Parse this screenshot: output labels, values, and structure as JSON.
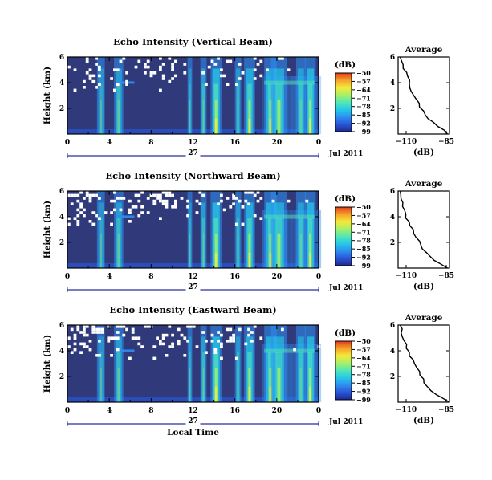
{
  "chart_data": [
    {
      "type": "heatmap",
      "title": "Echo Intensity (Vertical Beam)",
      "ylabel": "Height (km)",
      "ylim": [
        0,
        6
      ],
      "yticks": [
        "6",
        "4",
        "2"
      ],
      "xlim": [
        0,
        24
      ],
      "xticks": [
        "0",
        "4",
        "8",
        "12",
        "16",
        "20",
        "0"
      ],
      "day_label": "27",
      "date_label": "Jul 2011",
      "colorbar": {
        "label": "(dB)",
        "ticks": [
          "-50",
          "-57",
          "-64",
          "-71",
          "-78",
          "-85",
          "-92",
          "-99"
        ],
        "range": [
          -99,
          -50
        ]
      },
      "profile": {
        "title": "Average",
        "xlabel": "(dB)",
        "xlim": [
          -110,
          -85
        ],
        "xticks": [
          "-110",
          "-85"
        ],
        "ylim": [
          0,
          6
        ],
        "yticks": [
          "6",
          "4",
          "2"
        ],
        "height": [
          0.0,
          0.3,
          0.6,
          0.9,
          1.2,
          1.5,
          1.8,
          2.1,
          2.4,
          2.7,
          3.0,
          3.3,
          3.6,
          3.9,
          4.2,
          4.5,
          4.8,
          5.1,
          5.4,
          5.7,
          6.0
        ],
        "db": [
          -86,
          -88,
          -91,
          -93,
          -95,
          -97,
          -98,
          -99,
          -100,
          -101,
          -102,
          -103,
          -104,
          -104.5,
          -105,
          -105.5,
          -106,
          -107,
          -107.5,
          -108,
          -109
        ]
      }
    },
    {
      "type": "heatmap",
      "title": "Echo Intensity (Northward Beam)",
      "ylabel": "Height (km)",
      "ylim": [
        0,
        6
      ],
      "yticks": [
        "6",
        "4",
        "2"
      ],
      "xlim": [
        0,
        24
      ],
      "xticks": [
        "0",
        "4",
        "8",
        "12",
        "16",
        "20",
        "0"
      ],
      "day_label": "27",
      "date_label": "Jul 2011",
      "colorbar": {
        "label": "(dB)",
        "ticks": [
          "-50",
          "-57",
          "-64",
          "-71",
          "-78",
          "-85",
          "-92",
          "-99"
        ],
        "range": [
          -99,
          -50
        ]
      },
      "profile": {
        "title": "Average",
        "xlabel": "(dB)",
        "xlim": [
          -110,
          -85
        ],
        "xticks": [
          "-110",
          "-85"
        ],
        "ylim": [
          0,
          6
        ],
        "yticks": [
          "6",
          "4",
          "2"
        ],
        "height": [
          0.0,
          0.3,
          0.6,
          0.9,
          1.2,
          1.5,
          1.8,
          2.1,
          2.4,
          2.7,
          3.0,
          3.3,
          3.6,
          3.9,
          4.2,
          4.5,
          4.8,
          5.1,
          5.4,
          5.7,
          6.0
        ],
        "db": [
          -86,
          -89,
          -92,
          -94,
          -96,
          -98,
          -99,
          -100,
          -101,
          -102,
          -103,
          -104,
          -105,
          -106,
          -106.5,
          -107,
          -107.5,
          -108,
          -108,
          -108.5,
          -109
        ]
      }
    },
    {
      "type": "heatmap",
      "title": "Echo Intensity (Eastward Beam)",
      "ylabel": "Height (km)",
      "ylim": [
        0,
        6
      ],
      "yticks": [
        "6",
        "4",
        "2"
      ],
      "xlim": [
        0,
        24
      ],
      "xticks": [
        "0",
        "4",
        "8",
        "12",
        "16",
        "20",
        "0"
      ],
      "day_label": "27",
      "date_label": "Jul 2011",
      "xlabel": "Local Time",
      "colorbar": {
        "label": "(dB)",
        "ticks": [
          "-50",
          "-57",
          "-64",
          "-71",
          "-78",
          "-85",
          "-92",
          "-99"
        ],
        "range": [
          -99,
          -50
        ]
      },
      "profile": {
        "title": "Average",
        "xlabel": "(dB)",
        "xlim": [
          -110,
          -85
        ],
        "xticks": [
          "-110",
          "-85"
        ],
        "ylim": [
          0,
          6
        ],
        "yticks": [
          "6",
          "4",
          "2"
        ],
        "height": [
          0.0,
          0.3,
          0.6,
          0.9,
          1.2,
          1.5,
          1.8,
          2.1,
          2.4,
          2.7,
          3.0,
          3.3,
          3.6,
          3.9,
          4.2,
          4.5,
          4.8,
          5.1,
          5.4,
          5.7,
          6.0
        ],
        "db": [
          -85,
          -88,
          -91,
          -94,
          -96,
          -97,
          -98,
          -99,
          -100,
          -101,
          -102,
          -103,
          -104,
          -105,
          -105.5,
          -106,
          -107,
          -107.5,
          -108,
          -108.5,
          -109
        ]
      }
    }
  ],
  "colors": {
    "background": "#303a7a",
    "colormap": [
      "#1f2a8e",
      "#2a55d6",
      "#2d8ff0",
      "#24c9e8",
      "#53e6b6",
      "#a6f067",
      "#f5e93a",
      "#f7a32a",
      "#e33a1c"
    ],
    "gap": "#ffffff",
    "axis": "#000000",
    "timeline": "#2a2f9e"
  }
}
